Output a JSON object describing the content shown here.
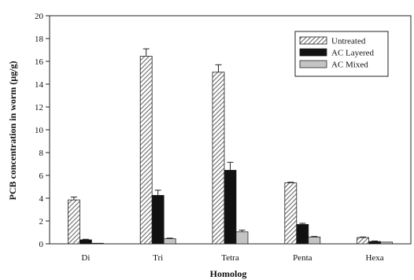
{
  "chart_data": {
    "type": "bar",
    "xlabel": "Homolog",
    "ylabel": "PCB concentration in worm (µg/g)",
    "categories": [
      "Di",
      "Tri",
      "Tetra",
      "Penta",
      "Hexa"
    ],
    "ylim": [
      0,
      20
    ],
    "yticks": [
      0,
      2,
      4,
      6,
      8,
      10,
      12,
      14,
      16,
      18,
      20
    ],
    "grid": false,
    "legend_position": "top-right",
    "series": [
      {
        "name": "Untreated",
        "values": [
          3.85,
          16.45,
          15.05,
          5.35,
          0.55
        ],
        "errors": [
          0.25,
          0.65,
          0.65,
          0.05,
          0.05
        ],
        "fill": "hatch",
        "color": "#7a7a7a"
      },
      {
        "name": "AC Layered",
        "values": [
          0.35,
          4.25,
          6.45,
          1.7,
          0.2
        ],
        "errors": [
          0.05,
          0.45,
          0.7,
          0.1,
          0.05
        ],
        "fill": "solid",
        "color": "#111111"
      },
      {
        "name": "AC Mixed",
        "values": [
          0.05,
          0.45,
          1.05,
          0.6,
          0.15
        ],
        "errors": [
          0.0,
          0.05,
          0.15,
          0.05,
          0.0
        ],
        "fill": "solid",
        "color": "#c4c4c4"
      }
    ]
  }
}
